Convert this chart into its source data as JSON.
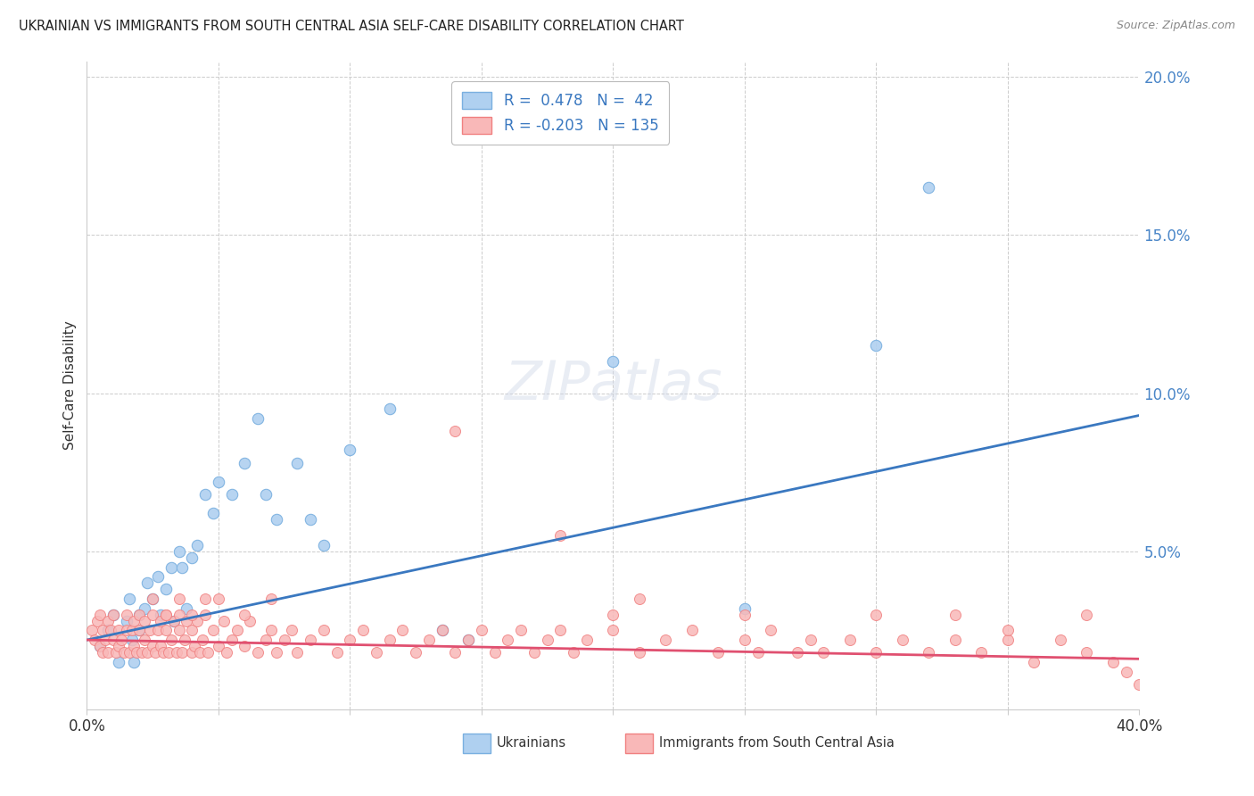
{
  "title": "UKRAINIAN VS IMMIGRANTS FROM SOUTH CENTRAL ASIA SELF-CARE DISABILITY CORRELATION CHART",
  "source": "Source: ZipAtlas.com",
  "ylabel": "Self-Care Disability",
  "x_min": 0.0,
  "x_max": 0.4,
  "y_min": 0.0,
  "y_max": 0.205,
  "blue_R": 0.478,
  "blue_N": 42,
  "pink_R": -0.203,
  "pink_N": 135,
  "blue_color": "#7ab0e0",
  "blue_fill": "#afd0f0",
  "pink_color": "#f08080",
  "pink_fill": "#f9b8b8",
  "blue_line_color": "#3a78c0",
  "pink_line_color": "#e05070",
  "legend_label_blue": "Ukrainians",
  "legend_label_pink": "Immigrants from South Central Asia",
  "background_color": "#ffffff",
  "grid_color": "#cccccc",
  "title_color": "#222222",
  "blue_trendline_x0": 0.0,
  "blue_trendline_y0": 0.022,
  "blue_trendline_x1": 0.4,
  "blue_trendline_y1": 0.093,
  "pink_trendline_x0": 0.0,
  "pink_trendline_y0": 0.022,
  "pink_trendline_x1": 0.4,
  "pink_trendline_y1": 0.016,
  "blue_x": [
    0.005,
    0.008,
    0.01,
    0.012,
    0.015,
    0.016,
    0.017,
    0.018,
    0.02,
    0.02,
    0.022,
    0.023,
    0.025,
    0.027,
    0.028,
    0.03,
    0.032,
    0.033,
    0.035,
    0.036,
    0.038,
    0.04,
    0.042,
    0.045,
    0.048,
    0.05,
    0.055,
    0.06,
    0.065,
    0.068,
    0.072,
    0.08,
    0.085,
    0.09,
    0.1,
    0.115,
    0.135,
    0.145,
    0.2,
    0.25,
    0.3,
    0.32
  ],
  "blue_y": [
    0.02,
    0.025,
    0.03,
    0.015,
    0.028,
    0.035,
    0.022,
    0.015,
    0.03,
    0.025,
    0.032,
    0.04,
    0.035,
    0.042,
    0.03,
    0.038,
    0.045,
    0.028,
    0.05,
    0.045,
    0.032,
    0.048,
    0.052,
    0.068,
    0.062,
    0.072,
    0.068,
    0.078,
    0.092,
    0.068,
    0.06,
    0.078,
    0.06,
    0.052,
    0.082,
    0.095,
    0.025,
    0.022,
    0.11,
    0.032,
    0.115,
    0.165
  ],
  "pink_x": [
    0.002,
    0.003,
    0.004,
    0.005,
    0.005,
    0.006,
    0.006,
    0.007,
    0.008,
    0.008,
    0.009,
    0.01,
    0.01,
    0.011,
    0.012,
    0.012,
    0.013,
    0.014,
    0.015,
    0.015,
    0.016,
    0.017,
    0.018,
    0.018,
    0.019,
    0.02,
    0.02,
    0.021,
    0.022,
    0.022,
    0.023,
    0.024,
    0.025,
    0.025,
    0.026,
    0.027,
    0.028,
    0.028,
    0.029,
    0.03,
    0.03,
    0.031,
    0.032,
    0.033,
    0.034,
    0.035,
    0.035,
    0.036,
    0.037,
    0.038,
    0.04,
    0.04,
    0.041,
    0.042,
    0.043,
    0.044,
    0.045,
    0.046,
    0.048,
    0.05,
    0.052,
    0.053,
    0.055,
    0.057,
    0.06,
    0.062,
    0.065,
    0.068,
    0.07,
    0.072,
    0.075,
    0.078,
    0.08,
    0.085,
    0.09,
    0.095,
    0.1,
    0.105,
    0.11,
    0.115,
    0.12,
    0.125,
    0.13,
    0.135,
    0.14,
    0.145,
    0.15,
    0.155,
    0.16,
    0.165,
    0.17,
    0.175,
    0.18,
    0.185,
    0.19,
    0.2,
    0.21,
    0.22,
    0.23,
    0.24,
    0.25,
    0.255,
    0.26,
    0.27,
    0.275,
    0.28,
    0.29,
    0.3,
    0.31,
    0.32,
    0.33,
    0.34,
    0.35,
    0.36,
    0.37,
    0.38,
    0.39,
    0.395,
    0.4,
    0.025,
    0.03,
    0.035,
    0.04,
    0.045,
    0.05,
    0.06,
    0.07,
    0.14,
    0.18,
    0.2,
    0.21,
    0.25,
    0.3,
    0.33,
    0.35,
    0.38
  ],
  "pink_y": [
    0.025,
    0.022,
    0.028,
    0.02,
    0.03,
    0.018,
    0.025,
    0.022,
    0.028,
    0.018,
    0.025,
    0.022,
    0.03,
    0.018,
    0.025,
    0.02,
    0.022,
    0.018,
    0.025,
    0.03,
    0.018,
    0.025,
    0.02,
    0.028,
    0.018,
    0.025,
    0.03,
    0.018,
    0.022,
    0.028,
    0.018,
    0.025,
    0.02,
    0.03,
    0.018,
    0.025,
    0.02,
    0.028,
    0.018,
    0.025,
    0.03,
    0.018,
    0.022,
    0.028,
    0.018,
    0.025,
    0.03,
    0.018,
    0.022,
    0.028,
    0.018,
    0.025,
    0.02,
    0.028,
    0.018,
    0.022,
    0.03,
    0.018,
    0.025,
    0.02,
    0.028,
    0.018,
    0.022,
    0.025,
    0.02,
    0.028,
    0.018,
    0.022,
    0.025,
    0.018,
    0.022,
    0.025,
    0.018,
    0.022,
    0.025,
    0.018,
    0.022,
    0.025,
    0.018,
    0.022,
    0.025,
    0.018,
    0.022,
    0.025,
    0.018,
    0.022,
    0.025,
    0.018,
    0.022,
    0.025,
    0.018,
    0.022,
    0.025,
    0.018,
    0.022,
    0.025,
    0.018,
    0.022,
    0.025,
    0.018,
    0.022,
    0.018,
    0.025,
    0.018,
    0.022,
    0.018,
    0.022,
    0.018,
    0.022,
    0.018,
    0.022,
    0.018,
    0.022,
    0.015,
    0.022,
    0.018,
    0.015,
    0.012,
    0.008,
    0.035,
    0.03,
    0.035,
    0.03,
    0.035,
    0.035,
    0.03,
    0.035,
    0.088,
    0.055,
    0.03,
    0.035,
    0.03,
    0.03,
    0.03,
    0.025,
    0.03
  ]
}
